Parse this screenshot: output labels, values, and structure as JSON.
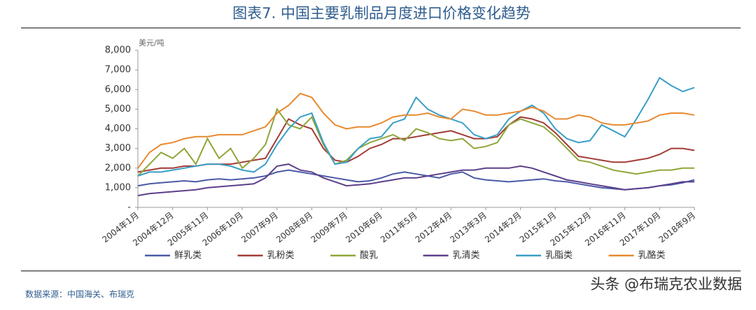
{
  "chart_data": {
    "type": "line",
    "title": "图表7.   中国主要乳制品月度进口价格变化趋势",
    "y_label": "美元/吨",
    "source": "数据来源：中国海关、布瑞克",
    "watermark": "头条 @布瑞克农业数据",
    "categories": [
      "2004年1月",
      null,
      null,
      "2004年12月",
      null,
      null,
      "2005年11月",
      null,
      null,
      "2006年10月",
      null,
      null,
      "2007年9月",
      null,
      null,
      "2008年8月",
      null,
      null,
      "2009年7月",
      null,
      null,
      "2010年6月",
      null,
      null,
      "2011年5月",
      null,
      null,
      "2012年4月",
      null,
      null,
      "2013年3月",
      null,
      null,
      "2014年2月",
      null,
      null,
      "2015年1月",
      null,
      null,
      "2015年12月",
      null,
      null,
      "2016年11月",
      null,
      null,
      "2017年10月",
      null,
      null,
      "2018年9月"
    ],
    "ylim": [
      0,
      8000
    ],
    "yticks": [
      {
        "value": 0,
        "label": "-"
      },
      {
        "value": 1000,
        "label": "1,000"
      },
      {
        "value": 2000,
        "label": "2,000"
      },
      {
        "value": 3000,
        "label": "3,000"
      },
      {
        "value": 4000,
        "label": "4,000"
      },
      {
        "value": 5000,
        "label": "5,000"
      },
      {
        "value": 6000,
        "label": "6,000"
      },
      {
        "value": 7000,
        "label": "7,000"
      },
      {
        "value": 8000,
        "label": "8,000"
      }
    ],
    "grid": false,
    "legend": "bottom",
    "series": [
      {
        "name": "鲜乳类",
        "color": "#4b5aa6",
        "values": [
          1100,
          1200,
          1250,
          1300,
          1350,
          1300,
          1400,
          1450,
          1400,
          1450,
          1500,
          1600,
          1800,
          1900,
          1800,
          1700,
          1600,
          1500,
          1400,
          1300,
          1350,
          1500,
          1700,
          1800,
          1700,
          1600,
          1500,
          1700,
          1800,
          1500,
          1400,
          1350,
          1300,
          1350,
          1400,
          1450,
          1350,
          1300,
          1200,
          1100,
          1000,
          950,
          900,
          950,
          1000,
          1100,
          1150,
          1250,
          1400
        ]
      },
      {
        "name": "乳粉类",
        "color": "#a33a35",
        "values": [
          1800,
          1900,
          2000,
          2000,
          2100,
          2100,
          2200,
          2200,
          2200,
          2300,
          2400,
          2500,
          3500,
          4500,
          4200,
          4000,
          3000,
          2400,
          2300,
          2600,
          3000,
          3200,
          3500,
          3500,
          3600,
          3700,
          3800,
          3900,
          3700,
          3500,
          3500,
          3600,
          4200,
          4600,
          4500,
          4300,
          3800,
          3200,
          2600,
          2500,
          2400,
          2300,
          2300,
          2400,
          2500,
          2700,
          3000,
          3000,
          2900
        ]
      },
      {
        "name": "酸乳",
        "color": "#8fa63a",
        "values": [
          1600,
          2200,
          2800,
          2500,
          3000,
          2200,
          3500,
          2500,
          3000,
          2000,
          2500,
          3200,
          5000,
          4200,
          4000,
          4600,
          3200,
          2200,
          2400,
          3000,
          3300,
          3500,
          3700,
          3400,
          4000,
          3800,
          3500,
          3400,
          3500,
          3000,
          3100,
          3300,
          4200,
          4500,
          4300,
          4100,
          3600,
          3000,
          2400,
          2300,
          2100,
          1900,
          1800,
          1700,
          1800,
          1900,
          1900,
          2000,
          2000
        ]
      },
      {
        "name": "乳清类",
        "color": "#5c3f8b",
        "values": [
          600,
          700,
          750,
          800,
          850,
          900,
          1000,
          1050,
          1100,
          1150,
          1200,
          1500,
          2100,
          2200,
          1900,
          1800,
          1500,
          1300,
          1100,
          1150,
          1200,
          1300,
          1400,
          1500,
          1500,
          1600,
          1700,
          1800,
          1900,
          1900,
          2000,
          2000,
          2000,
          2100,
          2000,
          1800,
          1600,
          1400,
          1300,
          1200,
          1100,
          1000,
          900,
          950,
          1000,
          1100,
          1200,
          1300,
          1300
        ]
      },
      {
        "name": "乳脂类",
        "color": "#3a9fc6",
        "values": [
          1600,
          1800,
          1800,
          1900,
          2000,
          2100,
          2200,
          2200,
          2100,
          1900,
          1800,
          2200,
          3200,
          4000,
          4600,
          4800,
          3300,
          2200,
          2300,
          3000,
          3500,
          3600,
          4300,
          4500,
          5600,
          5000,
          4700,
          4500,
          4300,
          3700,
          3500,
          3700,
          4500,
          4900,
          5200,
          4800,
          4000,
          3500,
          3300,
          3400,
          4200,
          3900,
          3600,
          4500,
          5500,
          6600,
          6200,
          5900,
          6100
        ]
      },
      {
        "name": "乳酪类",
        "color": "#e8892f",
        "values": [
          2000,
          2800,
          3200,
          3300,
          3500,
          3600,
          3600,
          3700,
          3700,
          3700,
          3900,
          4100,
          4800,
          5200,
          5800,
          5600,
          4800,
          4200,
          4000,
          4100,
          4100,
          4300,
          4600,
          4700,
          4700,
          4800,
          4600,
          4500,
          5000,
          4900,
          4700,
          4700,
          4800,
          4900,
          5100,
          4900,
          4500,
          4500,
          4700,
          4600,
          4300,
          4200,
          4200,
          4300,
          4400,
          4700,
          4800,
          4800,
          4700
        ]
      }
    ]
  }
}
